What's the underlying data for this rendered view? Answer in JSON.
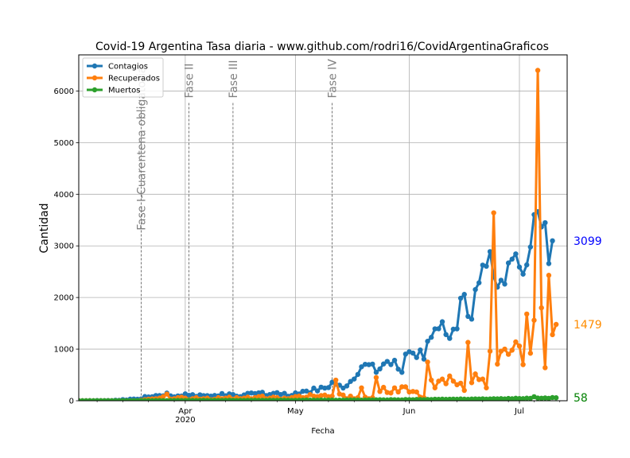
{
  "chart_data": {
    "type": "line",
    "title": "Covid-19 Argentina Tasa diaria - www.github.com/rodri16/CovidArgentinaGraficos",
    "xlabel": "Fecha",
    "ylabel": "Cantidad",
    "x_range": [
      "2020-03-03",
      "2020-07-14"
    ],
    "ylim": [
      0,
      6700
    ],
    "yticks": [
      0,
      1000,
      2000,
      3000,
      4000,
      5000,
      6000
    ],
    "xticks": [
      {
        "date": "2020-04-01",
        "label": "Apr",
        "sublabel": "2020"
      },
      {
        "date": "2020-05-01",
        "label": "May",
        "sublabel": ""
      },
      {
        "date": "2020-06-01",
        "label": "Jun",
        "sublabel": ""
      },
      {
        "date": "2020-07-01",
        "label": "Jul",
        "sublabel": ""
      }
    ],
    "grid": true,
    "legend_position": "top-left",
    "start_date": "2020-03-03",
    "phases": [
      {
        "date": "2020-03-20",
        "label": "Fase I-Cuarentena obligatoria"
      },
      {
        "date": "2020-04-02",
        "label": "Fase II"
      },
      {
        "date": "2020-04-14",
        "label": "Fase III"
      },
      {
        "date": "2020-05-11",
        "label": "Fase IV"
      }
    ],
    "series": [
      {
        "name": "Contagios",
        "color": "#1f77b4",
        "last_label": "3099",
        "label_color": "#0000ff",
        "values": [
          1,
          0,
          1,
          2,
          0,
          5,
          2,
          3,
          5,
          3,
          11,
          9,
          22,
          14,
          31,
          34,
          30,
          36,
          81,
          74,
          77,
          101,
          101,
          95,
          149,
          96,
          75,
          94,
          92,
          133,
          105,
          118,
          84,
          115,
          99,
          99,
          90,
          102,
          94,
          140,
          98,
          133,
          121,
          89,
          79,
          112,
          144,
          151,
          140,
          153,
          164,
          101,
          121,
          143,
          157,
          121,
          144,
          88,
          102,
          152,
          132,
          183,
          187,
          153,
          245,
          190,
          263,
          245,
          255,
          358,
          320,
          302,
          246,
          287,
          374,
          421,
          510,
          658,
          706,
          700,
          710,
          551,
          616,
          713,
          762,
          701,
          784,
          612,
          550,
          904,
          949,
          923,
          837,
          983,
          807,
          1153,
          1229,
          1393,
          1395,
          1531,
          1282,
          1208,
          1386,
          1393,
          1986,
          2060,
          1634,
          1581,
          2154,
          2285,
          2627,
          2606,
          2889,
          2401,
          2200,
          2335,
          2260,
          2669,
          2744,
          2845,
          2590,
          2453,
          2632,
          2979,
          3604,
          3663,
          3367,
          3449,
          2657,
          3099
        ]
      },
      {
        "name": "Recuperados",
        "color": "#ff7f0e",
        "last_label": "1479",
        "label_color": "#ff8c00",
        "values": [
          0,
          0,
          0,
          0,
          0,
          0,
          0,
          0,
          0,
          0,
          0,
          0,
          0,
          0,
          0,
          0,
          0,
          10,
          20,
          30,
          35,
          40,
          50,
          80,
          130,
          30,
          40,
          60,
          70,
          50,
          20,
          40,
          60,
          30,
          40,
          50,
          20,
          30,
          60,
          40,
          50,
          70,
          30,
          60,
          40,
          50,
          70,
          40,
          60,
          80,
          90,
          40,
          50,
          70,
          60,
          30,
          50,
          40,
          60,
          80,
          90,
          60,
          70,
          120,
          90,
          80,
          100,
          110,
          80,
          90,
          400,
          130,
          110,
          40,
          90,
          40,
          60,
          250,
          70,
          40,
          60,
          450,
          180,
          260,
          160,
          150,
          250,
          170,
          270,
          270,
          170,
          180,
          170,
          70,
          60,
          750,
          400,
          250,
          380,
          420,
          330,
          480,
          380,
          310,
          340,
          200,
          1130,
          350,
          520,
          410,
          420,
          250,
          960,
          3640,
          710,
          960,
          1000,
          900,
          980,
          1140,
          1060,
          700,
          1680,
          920,
          1560,
          6400,
          1800,
          640,
          2430,
          1280,
          1479
        ]
      },
      {
        "name": "Muertos",
        "color": "#2ca02c",
        "last_label": "58",
        "label_color": "#008000",
        "values": [
          0,
          0,
          0,
          0,
          0,
          1,
          0,
          1,
          0,
          0,
          1,
          0,
          2,
          0,
          1,
          0,
          1,
          3,
          1,
          3,
          2,
          4,
          5,
          2,
          3,
          4,
          4,
          6,
          5,
          5,
          8,
          6,
          4,
          7,
          9,
          5,
          6,
          8,
          6,
          7,
          8,
          10,
          9,
          5,
          8,
          7,
          9,
          8,
          10,
          8,
          9,
          7,
          10,
          9,
          8,
          12,
          10,
          11,
          7,
          9,
          10,
          11,
          14,
          12,
          13,
          10,
          15,
          12,
          13,
          14,
          11,
          13,
          12,
          15,
          14,
          16,
          13,
          12,
          15,
          17,
          14,
          19,
          20,
          18,
          16,
          22,
          21,
          18,
          17,
          24,
          22,
          20,
          25,
          23,
          21,
          26,
          24,
          30,
          28,
          31,
          27,
          30,
          32,
          29,
          35,
          31,
          28,
          33,
          36,
          34,
          38,
          32,
          35,
          40,
          37,
          42,
          36,
          45,
          39,
          48,
          44,
          41,
          50,
          46,
          78,
          52,
          49,
          55,
          47,
          62,
          58
        ]
      }
    ]
  }
}
